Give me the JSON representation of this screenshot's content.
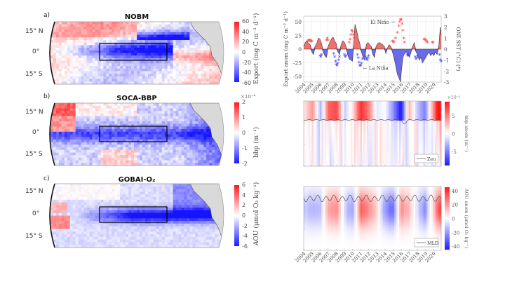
{
  "figure": {
    "panels": [
      {
        "letter": "a)",
        "title": "NOBM",
        "lat_labels": [
          "15° N",
          "0°",
          "15° S"
        ],
        "colorbar": {
          "ticks": [
            "60",
            "40",
            "20",
            "0",
            "-20",
            "-40",
            "-60"
          ],
          "range": [
            -60,
            60
          ],
          "label": "Export (mg C m⁻² d⁻¹)",
          "exponent": ""
        }
      },
      {
        "letter": "b)",
        "title": "SOCA-BBP",
        "lat_labels": [
          "15° N",
          "0°",
          "15° S"
        ],
        "colorbar": {
          "ticks": [
            "2",
            "1",
            "0",
            "-1",
            "-2"
          ],
          "range": [
            -2,
            2
          ],
          "label": "bbp (m⁻¹)",
          "exponent": "×10⁻⁴"
        }
      },
      {
        "letter": "c)",
        "title": "GOBAI-O₂",
        "lat_labels": [
          "15° N",
          "0°",
          "15° S"
        ],
        "colorbar": {
          "ticks": [
            "6",
            "4",
            "2",
            "0",
            "-2",
            "-4",
            "-6"
          ],
          "range": [
            -6,
            6
          ],
          "label": "AOU (μmol O₂ kg⁻¹)",
          "exponent": ""
        }
      }
    ],
    "colors": {
      "positive": "#ff1a1a",
      "negative": "#1a1aff",
      "neutral": "#ffffff",
      "land": "#d9d9d9",
      "oni_pos": "#ff4040",
      "oni_neg": "#4040ff",
      "area_pos": "#f07070",
      "area_neg": "#6a6aee"
    }
  },
  "chart_data": [
    {
      "type": "area",
      "title": "",
      "xlabel": "",
      "ylabel": "Export anom (mg C m⁻² d⁻¹)",
      "ylabel_right": "ONI SST (°C) (*)",
      "ylim": [
        -60,
        60
      ],
      "ylim_right": [
        -3,
        3
      ],
      "yticks": [
        50,
        25,
        0,
        -25,
        -50
      ],
      "yticks_right": [
        3,
        2,
        1,
        0,
        -1,
        -2,
        -3
      ],
      "x_tick_labels": [
        "2004",
        "2005",
        "2006",
        "2007",
        "2008",
        "2009",
        "2010",
        "2011",
        "2012",
        "2013",
        "2014",
        "2015",
        "2016",
        "2017",
        "2018",
        "2019",
        "2020"
      ],
      "xlim": [
        2004,
        2020.9
      ],
      "grid": true,
      "annotations": [
        {
          "text": "El Niño →",
          "x": 2015.2,
          "y": 2.5,
          "axis": "right"
        },
        {
          "text": "← La Niña",
          "x": 2011.3,
          "y": -1.7,
          "axis": "right"
        }
      ],
      "series": [
        {
          "name": "Export anomaly",
          "kind": "area",
          "x": [
            2004.0,
            2004.2,
            2004.4,
            2004.6,
            2004.8,
            2005.0,
            2005.2,
            2005.4,
            2005.6,
            2005.8,
            2006.0,
            2006.2,
            2006.4,
            2006.6,
            2006.8,
            2007.0,
            2007.2,
            2007.4,
            2007.6,
            2007.8,
            2008.0,
            2008.2,
            2008.4,
            2008.6,
            2008.8,
            2009.0,
            2009.2,
            2009.4,
            2009.6,
            2009.8,
            2010.0,
            2010.15,
            2010.3,
            2010.5,
            2010.7,
            2010.9,
            2011.1,
            2011.3,
            2011.5,
            2011.7,
            2011.9,
            2012.1,
            2012.3,
            2012.5,
            2012.7,
            2012.9,
            2013.1,
            2013.3,
            2013.5,
            2013.7,
            2013.9,
            2014.1,
            2014.3,
            2014.5,
            2014.7,
            2014.9,
            2015.1,
            2015.3,
            2015.5,
            2015.7,
            2015.9,
            2016.0,
            2016.2,
            2016.4,
            2016.6,
            2016.8,
            2017.0,
            2017.2,
            2017.4,
            2017.6,
            2017.8,
            2018.0,
            2018.2,
            2018.4,
            2018.6,
            2018.8,
            2019.0,
            2019.2,
            2019.4,
            2019.6,
            2019.8,
            2020.0,
            2020.2,
            2020.4,
            2020.6,
            2020.8,
            2020.9
          ],
          "values": [
            5,
            12,
            15,
            10,
            8,
            -5,
            -10,
            5,
            10,
            20,
            18,
            10,
            -5,
            -12,
            -15,
            5,
            12,
            18,
            22,
            15,
            10,
            -5,
            -10,
            8,
            15,
            12,
            5,
            -10,
            -18,
            -20,
            -22,
            10,
            45,
            35,
            20,
            10,
            -5,
            -15,
            -20,
            8,
            12,
            8,
            5,
            -10,
            -15,
            5,
            10,
            12,
            10,
            8,
            5,
            -8,
            2,
            8,
            5,
            -5,
            -15,
            -30,
            -45,
            -52,
            -60,
            -40,
            -15,
            -8,
            -5,
            -10,
            -15,
            -5,
            5,
            12,
            -5,
            -10,
            -20,
            -15,
            -25,
            -20,
            -15,
            -10,
            -5,
            -12,
            -8,
            -12,
            -5,
            -10,
            5,
            40,
            25
          ],
          "unit": "mg C m-2 d-1"
        },
        {
          "name": "ONI SST",
          "kind": "scatter",
          "marker": "*",
          "axis": "right",
          "x": [
            2004.5,
            2004.6,
            2004.7,
            2004.8,
            2004.9,
            2005.0,
            2006.0,
            2006.1,
            2006.2,
            2006.8,
            2006.9,
            2007.0,
            2007.7,
            2007.8,
            2007.9,
            2008.0,
            2008.1,
            2008.2,
            2008.3,
            2008.4,
            2009.0,
            2009.1,
            2009.2,
            2009.6,
            2009.7,
            2009.8,
            2009.9,
            2010.0,
            2010.1,
            2010.2,
            2010.6,
            2010.7,
            2010.8,
            2010.9,
            2011.0,
            2011.1,
            2011.2,
            2011.6,
            2011.7,
            2011.8,
            2011.9,
            2012.0,
            2014.9,
            2015.0,
            2015.1,
            2015.3,
            2015.5,
            2015.7,
            2015.8,
            2015.9,
            2016.0,
            2016.1,
            2016.2,
            2016.3,
            2016.4,
            2016.7,
            2016.8,
            2016.9,
            2017.7,
            2017.8,
            2017.9,
            2018.0,
            2018.8,
            2018.9,
            2019.0,
            2019.1,
            2019.2,
            2019.8,
            2019.9,
            2020.7,
            2020.8,
            2020.9
          ],
          "values": [
            0.6,
            0.7,
            0.7,
            0.7,
            0.6,
            0.6,
            -0.7,
            -0.8,
            -0.6,
            0.7,
            0.9,
            0.7,
            -0.5,
            -0.8,
            -1.2,
            -1.5,
            -1.6,
            -1.4,
            -1.1,
            -0.8,
            -0.6,
            -0.8,
            -0.7,
            0.5,
            0.8,
            1.2,
            1.6,
            1.5,
            1.2,
            0.9,
            -0.6,
            -0.9,
            -1.3,
            -1.6,
            -1.6,
            -1.4,
            -1.0,
            -0.8,
            -1.0,
            -1.1,
            -0.9,
            -0.7,
            0.6,
            0.6,
            0.5,
            0.9,
            1.4,
            2.0,
            2.4,
            2.6,
            2.6,
            2.2,
            1.6,
            0.9,
            0.5,
            -0.6,
            -0.7,
            -0.6,
            -0.8,
            -1.0,
            -0.9,
            -0.7,
            0.8,
            0.8,
            0.7,
            0.6,
            0.5,
            0.5,
            0.5,
            -0.6,
            -1.1,
            -1.2
          ],
          "unit": "°C"
        }
      ]
    },
    {
      "type": "heatmap",
      "title": "",
      "xlabel": "",
      "ylabel": "",
      "colorbar_label": "bbp anom (m⁻¹)",
      "colorbar_exponent": "×10⁻⁵",
      "colorbar_ticks": [
        5,
        0,
        -5
      ],
      "clim": [
        -9,
        9
      ],
      "x_tick_labels": [],
      "xlim": [
        2004,
        2020.9
      ],
      "legend": {
        "entry": "Zeu",
        "position": "bottom-right"
      },
      "surface_anomaly_by_year": {
        "x": [
          2004,
          2005,
          2006,
          2007,
          2008,
          2009,
          2010,
          2011,
          2012,
          2013,
          2014,
          2015,
          2016,
          2017,
          2018,
          2019,
          2020
        ],
        "values": [
          1,
          4,
          -3,
          6,
          7,
          -2,
          1,
          8,
          5,
          -1,
          0,
          -4,
          -9,
          3,
          -2,
          -5,
          4
        ]
      },
      "line": {
        "name": "Zeu",
        "note": "near-constant depth with dip in early 2016"
      }
    },
    {
      "type": "heatmap",
      "title": "",
      "xlabel": "",
      "ylabel": "",
      "colorbar_label": "AOU anom (μmol O₂ kg⁻¹)",
      "colorbar_exponent": "",
      "colorbar_ticks": [
        40,
        20,
        0,
        -20,
        -40
      ],
      "clim": [
        -45,
        45
      ],
      "x_tick_labels": [
        "2004",
        "2005",
        "2006",
        "2007",
        "2008",
        "2009",
        "2010",
        "2011",
        "2012",
        "2013",
        "2014",
        "2015",
        "2016",
        "2017",
        "2018",
        "2019",
        "2020"
      ],
      "xlim": [
        2004,
        2020.9
      ],
      "legend": {
        "entry": "MLD",
        "position": "bottom-right"
      },
      "subsurface_anomaly_by_year": {
        "x": [
          2004,
          2005,
          2006,
          2007,
          2008,
          2009,
          2010,
          2011,
          2012,
          2013,
          2014,
          2015,
          2016,
          2017,
          2018,
          2019,
          2020
        ],
        "values": [
          -10,
          -15,
          -12,
          18,
          22,
          -8,
          -20,
          30,
          22,
          8,
          -18,
          -30,
          20,
          14,
          -6,
          -22,
          10
        ]
      },
      "line": {
        "name": "MLD",
        "note": "oscillating seasonal cycle near top of panel"
      }
    }
  ]
}
